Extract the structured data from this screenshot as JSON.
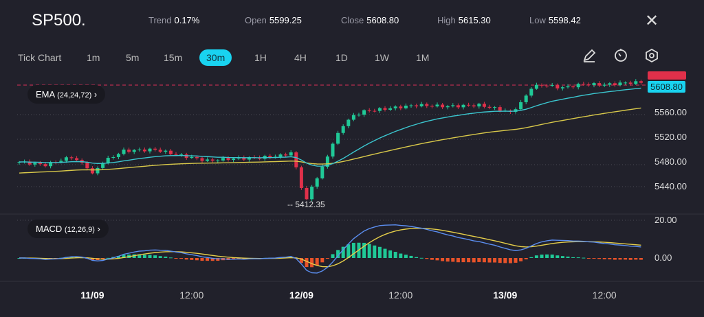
{
  "header": {
    "symbol": "SP500.",
    "stats": [
      {
        "k": "Trend",
        "v": "0.17%"
      },
      {
        "k": "Open",
        "v": "5599.25"
      },
      {
        "k": "Close",
        "v": "5608.80"
      },
      {
        "k": "High",
        "v": "5615.30"
      },
      {
        "k": "Low",
        "v": "5598.42"
      }
    ]
  },
  "timeframes": [
    "Tick Chart",
    "1m",
    "5m",
    "15m",
    "30m",
    "1H",
    "4H",
    "1D",
    "1W",
    "1M"
  ],
  "active_timeframe": "30m",
  "tools": [
    "pencil-icon",
    "timer-icon",
    "settings-hex-icon"
  ],
  "ema": {
    "label": "EMA",
    "params": "(24,24,72)"
  },
  "macd": {
    "label": "MACD",
    "params": "(12,26,9)"
  },
  "current_price": "5608.80",
  "low_marker": "-- 5412.35",
  "colors": {
    "up": "#20c997",
    "down": "#e0304a",
    "ema_fast": "#3bc6cf",
    "ema_slow": "#d9c94a",
    "macd": "#5b8ef0",
    "signal": "#e6cf4a",
    "hist_up": "#20c997",
    "hist_down": "#e8532a",
    "accent": "#19d3f0"
  },
  "chart_data": {
    "type": "candlestick",
    "price_ticks": [
      "5560.00",
      "5520.00",
      "5480.00",
      "5440.00"
    ],
    "price_tick_values": [
      5560,
      5520,
      5480,
      5440
    ],
    "macd_ticks": [
      "20.00",
      "0.00"
    ],
    "x_labels": [
      {
        "t": "11/09",
        "i": 14,
        "bold": true
      },
      {
        "t": "12:00",
        "i": 33,
        "bold": false
      },
      {
        "t": "12/09",
        "i": 54,
        "bold": true
      },
      {
        "t": "12:00",
        "i": 73,
        "bold": false
      },
      {
        "t": "13/09",
        "i": 93,
        "bold": true
      },
      {
        "t": "12:00",
        "i": 112,
        "bold": false
      }
    ],
    "candles": 120,
    "price_path": [
      [
        0,
        5480
      ],
      [
        5,
        5475
      ],
      [
        10,
        5488
      ],
      [
        13,
        5472
      ],
      [
        14,
        5460
      ],
      [
        16,
        5480
      ],
      [
        20,
        5498
      ],
      [
        26,
        5500
      ],
      [
        30,
        5492
      ],
      [
        36,
        5482
      ],
      [
        40,
        5485
      ],
      [
        46,
        5487
      ],
      [
        50,
        5490
      ],
      [
        52,
        5495
      ],
      [
        53,
        5470
      ],
      [
        54,
        5440
      ],
      [
        55,
        5418
      ],
      [
        56,
        5440
      ],
      [
        58,
        5470
      ],
      [
        60,
        5510
      ],
      [
        62,
        5540
      ],
      [
        64,
        5555
      ],
      [
        66,
        5562
      ],
      [
        70,
        5566
      ],
      [
        76,
        5572
      ],
      [
        82,
        5570
      ],
      [
        88,
        5572
      ],
      [
        92,
        5565
      ],
      [
        94,
        5560
      ],
      [
        96,
        5575
      ],
      [
        98,
        5600
      ],
      [
        100,
        5605
      ],
      [
        104,
        5600
      ],
      [
        108,
        5606
      ],
      [
        112,
        5605
      ],
      [
        116,
        5608
      ],
      [
        119,
        5609
      ]
    ],
    "ylim": [
      5400,
      5620
    ],
    "macd_ylim": [
      -5,
      22
    ]
  }
}
